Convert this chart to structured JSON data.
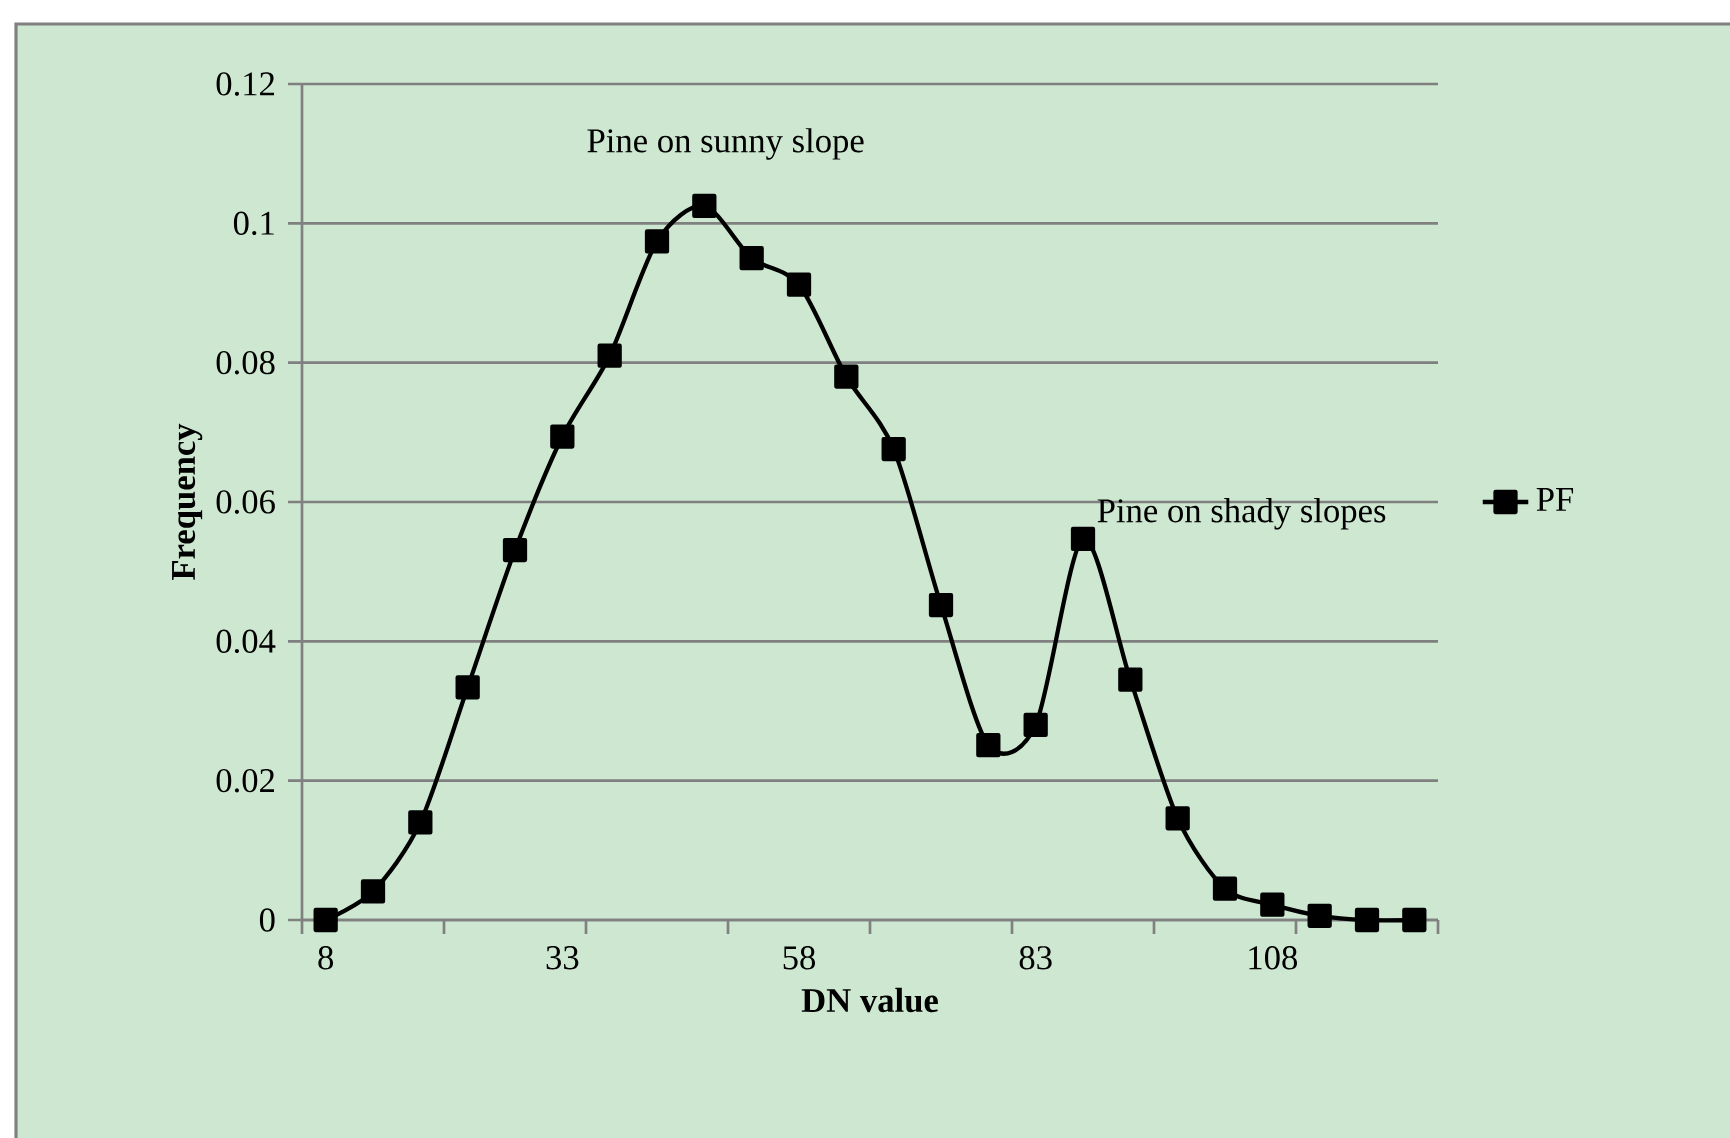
{
  "chart_data": {
    "type": "line",
    "xlabel": "DN value",
    "ylabel": "Frequency",
    "categories": [
      "8",
      null,
      null,
      null,
      null,
      "33",
      null,
      null,
      null,
      null,
      "58",
      null,
      null,
      null,
      null,
      "83",
      null,
      null,
      null,
      null,
      "108",
      null,
      null,
      null
    ],
    "series": [
      {
        "name": "PF",
        "color": "#000000",
        "values": [
          0,
          0.0041,
          0.014,
          0.0334,
          0.0531,
          0.0694,
          0.081,
          0.0974,
          0.1025,
          0.095,
          0.0912,
          0.078,
          0.0676,
          0.0452,
          0.0251,
          0.028,
          0.0547,
          0.0345,
          0.0146,
          0.0045,
          0.0022,
          0.0006,
          0,
          0
        ]
      }
    ],
    "ylim": [
      0,
      0.12
    ],
    "yticks": [
      0,
      0.02,
      0.04,
      0.06,
      0.08,
      0.1,
      0.12
    ],
    "grid": "y",
    "legend": "right",
    "marker": "square",
    "line_style": "solid",
    "annotations": [
      "Pine on sunny slope",
      "Pine on shady slopes"
    ]
  }
}
